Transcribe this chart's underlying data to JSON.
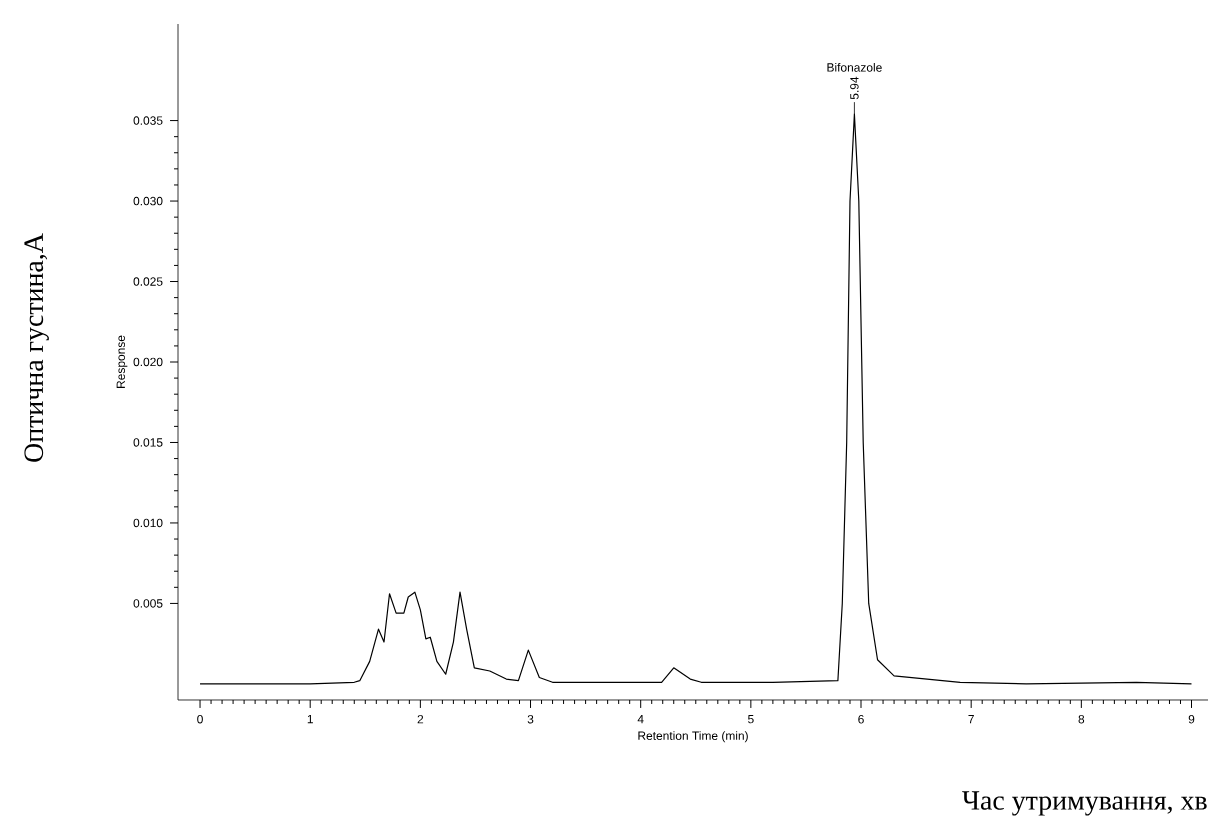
{
  "chart_data": {
    "type": "line",
    "xlabel": "Retention Time (min)",
    "ylabel": "Response",
    "xlim": [
      -0.2,
      9.15
    ],
    "ylim": [
      -0.001,
      0.041
    ],
    "xticks": [
      0,
      1,
      2,
      3,
      4,
      5,
      6,
      7,
      8,
      9
    ],
    "yticks": [
      0.005,
      {
        "value": 0.01,
        "label": "0.010"
      },
      0.015,
      {
        "value": 0.02,
        "label": "0.020"
      },
      0.025,
      {
        "value": 0.03,
        "label": "0.030"
      },
      0.035
    ],
    "x": [
      0,
      0.5,
      1,
      1.4,
      1.45,
      1.54,
      1.62,
      1.67,
      1.72,
      1.78,
      1.85,
      1.89,
      1.95,
      2.0,
      2.05,
      2.09,
      2.15,
      2.23,
      2.3,
      2.36,
      2.42,
      2.49,
      2.63,
      2.78,
      2.89,
      2.98,
      3.08,
      3.2,
      3.6,
      4.19,
      4.3,
      4.45,
      4.55,
      5.2,
      5.79,
      5.83,
      5.87,
      5.9,
      5.94,
      5.98,
      6.02,
      6.07,
      6.15,
      6.3,
      6.6,
      6.9,
      7.5,
      8.5,
      9.0
    ],
    "series": [
      {
        "color": "#000000",
        "values": [
          0,
          0,
          0,
          0.0001,
          0.0002,
          0.0014,
          0.0034,
          0.0026,
          0.0056,
          0.0044,
          0.0044,
          0.0054,
          0.0057,
          0.0046,
          0.0028,
          0.0029,
          0.0014,
          0.0006,
          0.0026,
          0.0057,
          0.0034,
          0.001,
          0.0008,
          0.0003,
          0.0002,
          0.0021,
          0.0004,
          0.0001,
          0.0001,
          0.0001,
          0.001,
          0.0003,
          0.0001,
          0.0001,
          0.0002,
          0.005,
          0.015,
          0.03,
          0.0354,
          0.03,
          0.015,
          0.005,
          0.0015,
          0.0005,
          0.0003,
          0.0001,
          0,
          0.0001,
          0
        ]
      }
    ],
    "annotations": [
      "Bifonazole",
      {
        "text": "5.94",
        "x": 5.94,
        "y": 0.0354
      },
      "Оптична густина,А",
      "Час утримування, хв"
    ]
  }
}
